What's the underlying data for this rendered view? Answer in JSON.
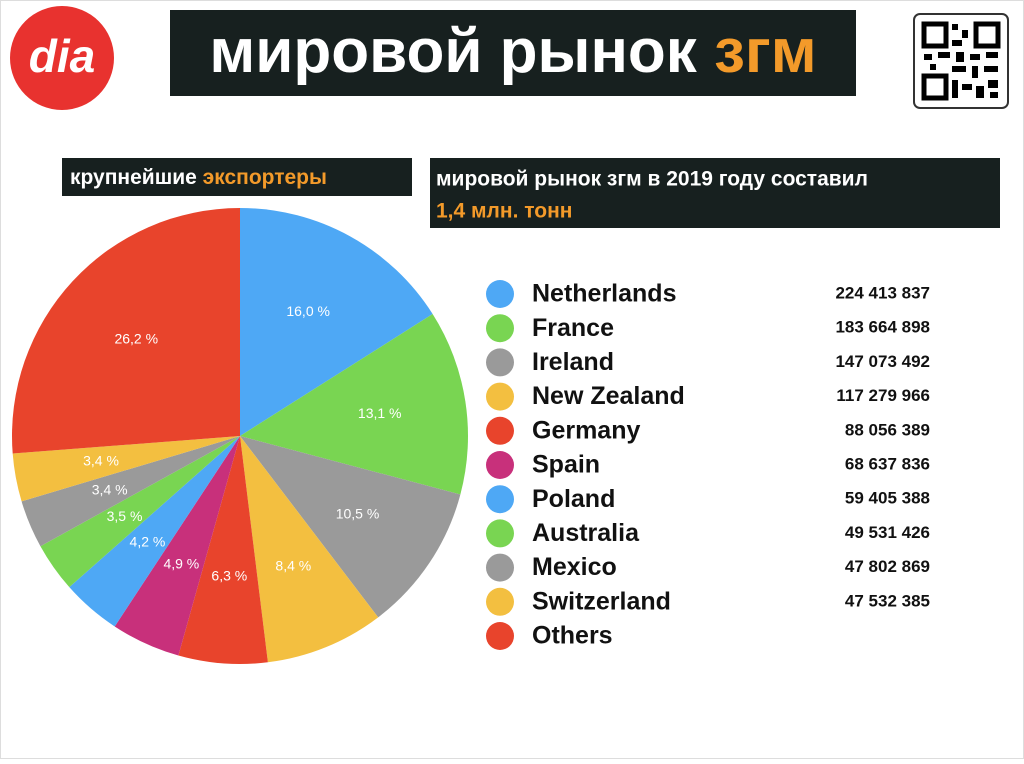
{
  "header": {
    "logo": "dia",
    "title": "мировой рынок",
    "title_highlight": "згм"
  },
  "chart_data": {
    "type": "pie",
    "subtitle": "крупнейшие",
    "subtitle_highlight": "экспортеры",
    "note": "мировой рынок згм в 2019 году составил",
    "note_highlight": "1,4 млн. тонн",
    "categories": [
      "Netherlands",
      "France",
      "Ireland",
      "New Zealand",
      "Germany",
      "Spain",
      "Poland",
      "Australia",
      "Mexico",
      "Switzerland",
      "Others"
    ],
    "values": [
      16.0,
      13.1,
      10.5,
      8.4,
      6.3,
      4.9,
      4.2,
      3.5,
      3.4,
      3.4,
      26.2
    ],
    "value_labels": [
      "16,0 %",
      "13,1 %",
      "10,5 %",
      "8,4 %",
      "6,3 %",
      "4,9 %",
      "4,2 %",
      "3,5 %",
      "3,4 %",
      "3,4 %",
      "26,2 %"
    ],
    "amounts": [
      "224 413 837",
      "183 664 898",
      "147 073 492",
      "117 279 966",
      "88 056 389",
      "68 637 836",
      "59 405 388",
      "49 531 426",
      "47 802 869",
      "47 532 385",
      null
    ],
    "colors": [
      "#4ea8f5",
      "#79d552",
      "#9a9a9a",
      "#f3bf40",
      "#e8442c",
      "#c8307b",
      "#4ea8f5",
      "#79d552",
      "#9a9a9a",
      "#f3bf40",
      "#e8442c"
    ]
  }
}
